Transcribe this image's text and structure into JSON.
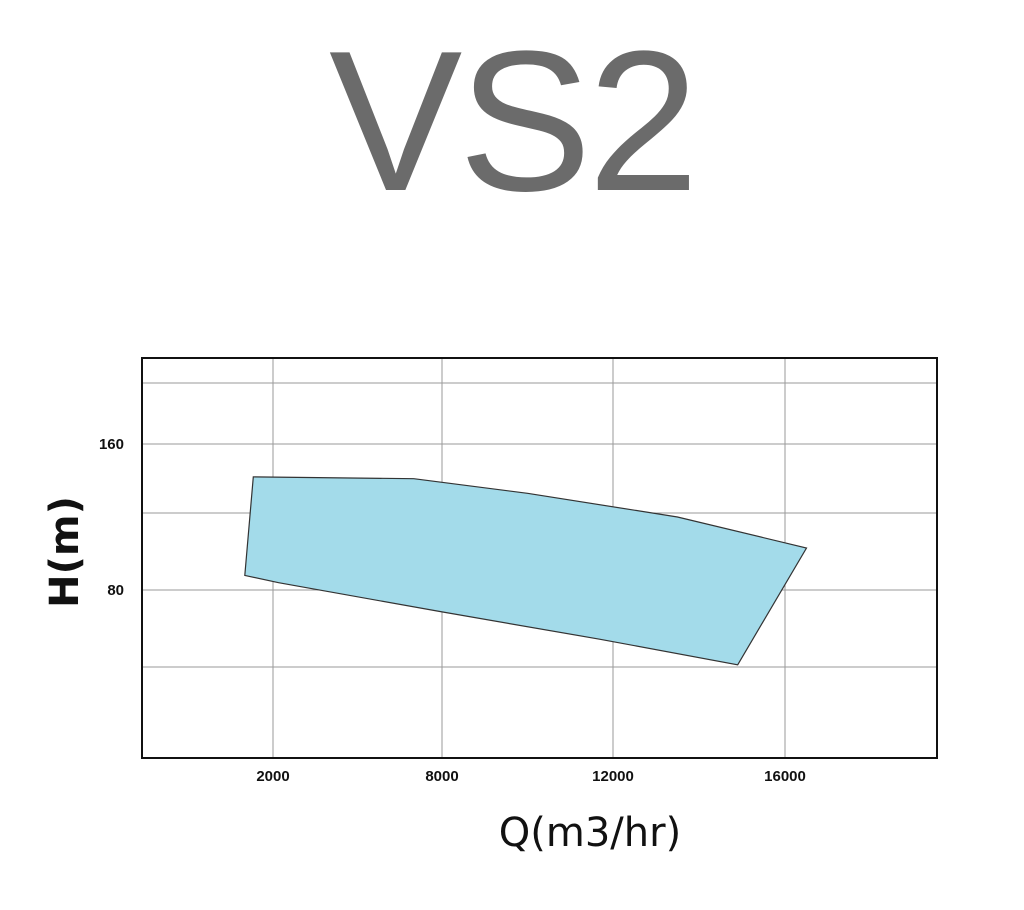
{
  "title": "VS2",
  "chart_data": {
    "type": "area",
    "title": "VS2",
    "xlabel": "Q(m3/hr)",
    "ylabel": "H(m)",
    "x_tick_labels": [
      "2000",
      "8000",
      "12000",
      "16000"
    ],
    "y_tick_labels": [
      "160",
      "80"
    ],
    "grid": true,
    "fill_color": "#a3dbea",
    "region_outline": [
      {
        "q": 1300,
        "h": 142
      },
      {
        "q": 7000,
        "h": 141
      },
      {
        "q": 10000,
        "h": 133
      },
      {
        "q": 13500,
        "h": 120
      },
      {
        "q": 16500,
        "h": 103
      },
      {
        "q": 14900,
        "h": 39
      },
      {
        "q": 11700,
        "h": 53
      },
      {
        "q": 8000,
        "h": 68
      },
      {
        "q": 2200,
        "h": 84
      },
      {
        "q": 1000,
        "h": 88
      }
    ]
  }
}
